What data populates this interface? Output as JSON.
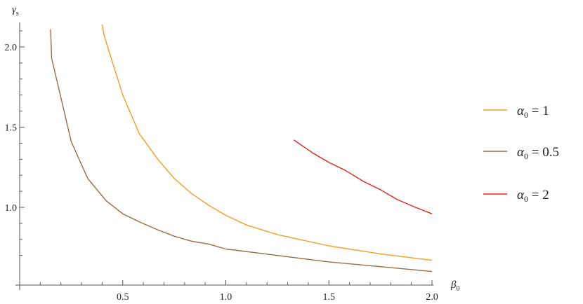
{
  "chart_data": {
    "type": "line",
    "title": "",
    "xlabel": {
      "symbol": "β",
      "subscript": "0"
    },
    "ylabel": {
      "symbol": "γ",
      "subscript": "s"
    },
    "xlim": [
      0,
      2.0
    ],
    "ylim": [
      0.6,
      2.15
    ],
    "x_ticks": [
      0.5,
      1.0,
      1.5,
      2.0
    ],
    "x_tick_labels": [
      "0.5",
      "1.0",
      "1.5",
      "2.0"
    ],
    "y_ticks": [
      1.0,
      1.5,
      2.0
    ],
    "y_tick_labels": [
      "1.0",
      "1.5",
      "2.0"
    ],
    "grid": false,
    "legend_position": "right",
    "series": [
      {
        "name": {
          "symbol": "α",
          "subscript": "0",
          "suffix": " = 1"
        },
        "color": "#f59d1f",
        "points": [
          [
            0.4,
            2.14
          ],
          [
            0.41,
            2.07
          ],
          [
            0.5,
            1.7
          ],
          [
            0.58,
            1.46
          ],
          [
            0.67,
            1.3
          ],
          [
            0.75,
            1.18
          ],
          [
            0.83,
            1.09
          ],
          [
            0.92,
            1.01
          ],
          [
            1.0,
            0.95
          ],
          [
            1.1,
            0.89
          ],
          [
            1.25,
            0.83
          ],
          [
            1.5,
            0.76
          ],
          [
            1.75,
            0.71
          ],
          [
            2.0,
            0.67
          ]
        ]
      },
      {
        "name": {
          "symbol": "α",
          "subscript": "0",
          "suffix": " = 0.5"
        },
        "color": "#9a6b44",
        "points": [
          [
            0.15,
            2.11
          ],
          [
            0.155,
            1.93
          ],
          [
            0.25,
            1.41
          ],
          [
            0.33,
            1.18
          ],
          [
            0.42,
            1.04
          ],
          [
            0.5,
            0.96
          ],
          [
            0.58,
            0.91
          ],
          [
            0.67,
            0.86
          ],
          [
            0.75,
            0.82
          ],
          [
            0.83,
            0.79
          ],
          [
            0.92,
            0.77
          ],
          [
            1.0,
            0.74
          ],
          [
            1.25,
            0.7
          ],
          [
            1.5,
            0.66
          ],
          [
            1.75,
            0.63
          ],
          [
            2.0,
            0.6
          ]
        ]
      },
      {
        "name": {
          "symbol": "α",
          "subscript": "0",
          "suffix": " = 2"
        },
        "color": "#e2231a",
        "points": [
          [
            1.33,
            1.42
          ],
          [
            1.42,
            1.34
          ],
          [
            1.5,
            1.28
          ],
          [
            1.58,
            1.23
          ],
          [
            1.67,
            1.16
          ],
          [
            1.75,
            1.11
          ],
          [
            1.83,
            1.05
          ],
          [
            1.92,
            1.0
          ],
          [
            2.0,
            0.96
          ]
        ]
      }
    ]
  }
}
